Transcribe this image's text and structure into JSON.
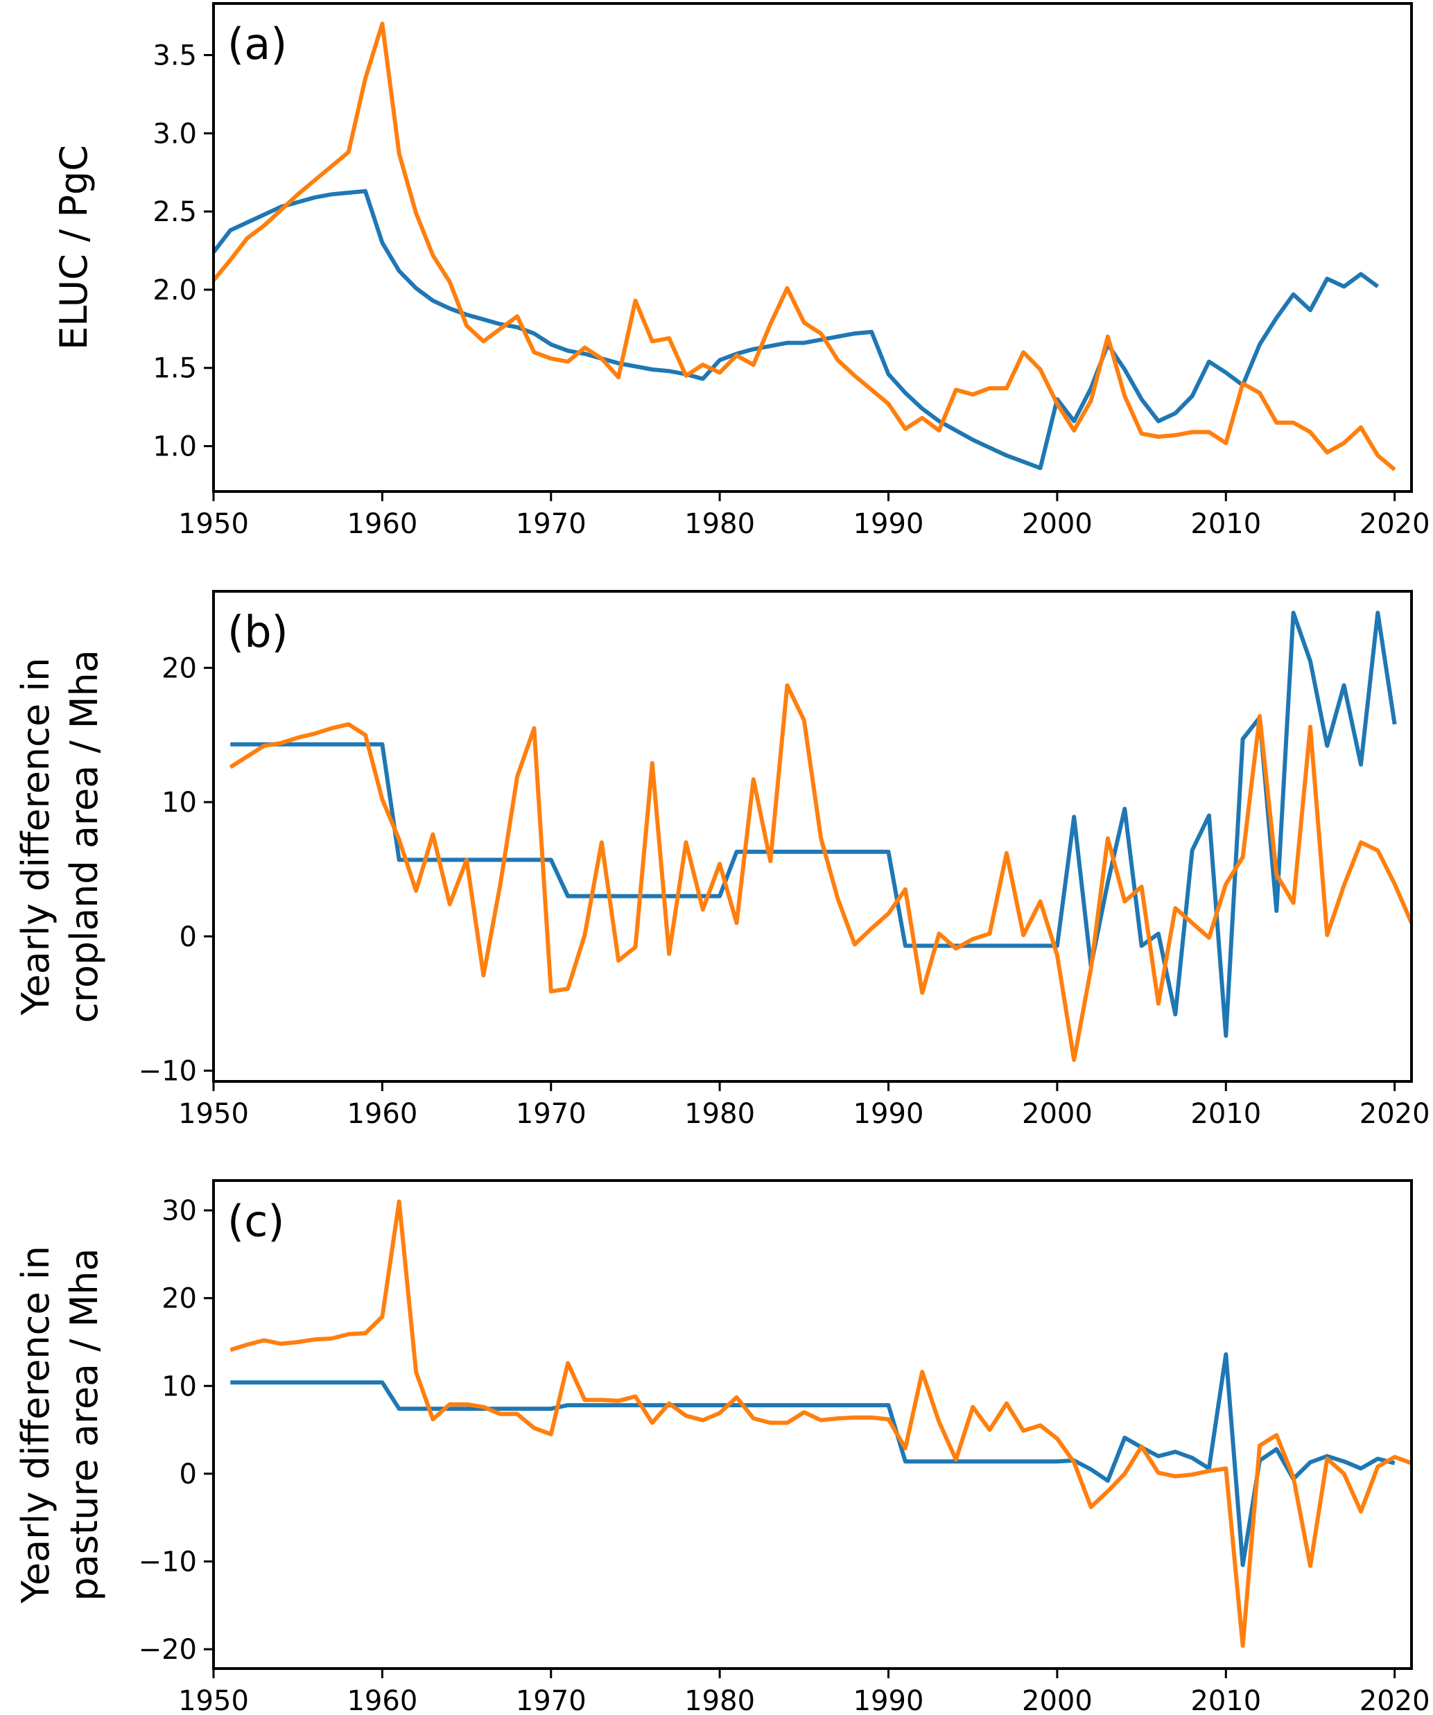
{
  "chart_data": [
    {
      "type": "line",
      "panel_label": "(a)",
      "title": "",
      "xlabel": "",
      "ylabel": "ELUC / PgC",
      "xlim": [
        1950,
        2021
      ],
      "ylim": [
        0.71,
        3.83
      ],
      "xticks": [
        1950,
        1960,
        1970,
        1980,
        1990,
        2000,
        2010,
        2020
      ],
      "xtick_labels": [
        "1950",
        "1960",
        "1970",
        "1980",
        "1990",
        "2000",
        "2010",
        "2020"
      ],
      "yticks": [
        1.0,
        1.5,
        2.0,
        2.5,
        3.0,
        3.5
      ],
      "ytick_labels": [
        "1.0",
        "1.5",
        "2.0",
        "2.5",
        "3.0",
        "3.5"
      ],
      "grid": false,
      "legend": null,
      "series": [
        {
          "name": "blue",
          "color": "#1f77b4",
          "x_start": 1950,
          "values": [
            2.24,
            2.38,
            2.43,
            2.48,
            2.53,
            2.56,
            2.59,
            2.61,
            2.62,
            2.63,
            2.3,
            2.12,
            2.01,
            1.93,
            1.88,
            1.84,
            1.81,
            1.78,
            1.76,
            1.72,
            1.65,
            1.61,
            1.59,
            1.56,
            1.53,
            1.51,
            1.49,
            1.48,
            1.46,
            1.43,
            1.55,
            1.59,
            1.62,
            1.64,
            1.66,
            1.66,
            1.68,
            1.7,
            1.72,
            1.73,
            1.46,
            1.34,
            1.24,
            1.16,
            1.1,
            1.04,
            0.99,
            0.94,
            0.9,
            0.86,
            1.3,
            1.16,
            1.37,
            1.65,
            1.49,
            1.3,
            1.16,
            1.21,
            1.32,
            1.54,
            1.47,
            1.39,
            1.65,
            1.82,
            1.97,
            1.87,
            2.07,
            2.02,
            2.1,
            2.02
          ]
        },
        {
          "name": "orange",
          "color": "#ff7f0e",
          "x_start": 1950,
          "values": [
            2.06,
            2.19,
            2.33,
            2.41,
            2.51,
            2.61,
            2.7,
            2.79,
            2.88,
            3.35,
            3.7,
            2.87,
            2.49,
            2.22,
            2.05,
            1.77,
            1.67,
            1.75,
            1.83,
            1.6,
            1.56,
            1.54,
            1.63,
            1.56,
            1.44,
            1.93,
            1.67,
            1.69,
            1.45,
            1.52,
            1.47,
            1.58,
            1.52,
            1.78,
            2.01,
            1.79,
            1.72,
            1.55,
            1.45,
            1.36,
            1.27,
            1.11,
            1.18,
            1.1,
            1.36,
            1.33,
            1.37,
            1.37,
            1.6,
            1.49,
            1.27,
            1.1,
            1.29,
            1.7,
            1.32,
            1.08,
            1.06,
            1.07,
            1.09,
            1.09,
            1.02,
            1.4,
            1.34,
            1.15,
            1.15,
            1.09,
            0.96,
            1.02,
            1.12,
            0.94,
            0.85
          ]
        }
      ]
    },
    {
      "type": "line",
      "panel_label": "(b)",
      "title": "",
      "xlabel": "",
      "ylabel": "Yearly difference in\ncropland area / Mha",
      "ylabel_lines": [
        "Yearly difference in",
        "cropland area / Mha"
      ],
      "xlim": [
        1950,
        2021
      ],
      "ylim": [
        -10.8,
        25.7
      ],
      "xticks": [
        1950,
        1960,
        1970,
        1980,
        1990,
        2000,
        2010,
        2020
      ],
      "xtick_labels": [
        "1950",
        "1960",
        "1970",
        "1980",
        "1990",
        "2000",
        "2010",
        "2020"
      ],
      "yticks": [
        -10,
        0,
        10,
        20
      ],
      "ytick_labels": [
        "−10",
        "0",
        "10",
        "20"
      ],
      "grid": false,
      "legend": null,
      "series": [
        {
          "name": "blue",
          "color": "#1f77b4",
          "x_start": 1951,
          "values": [
            14.3,
            14.3,
            14.3,
            14.3,
            14.3,
            14.3,
            14.3,
            14.3,
            14.3,
            14.3,
            5.7,
            5.7,
            5.7,
            5.7,
            5.7,
            5.7,
            5.7,
            5.7,
            5.7,
            5.7,
            3.0,
            3.0,
            3.0,
            3.0,
            3.0,
            3.0,
            3.0,
            3.0,
            3.0,
            3.0,
            6.3,
            6.3,
            6.3,
            6.3,
            6.3,
            6.3,
            6.3,
            6.3,
            6.3,
            6.3,
            -0.7,
            -0.7,
            -0.7,
            -0.7,
            -0.7,
            -0.7,
            -0.7,
            -0.7,
            -0.7,
            -0.7,
            8.9,
            -2.2,
            4.0,
            9.5,
            -0.7,
            0.2,
            -5.8,
            6.4,
            9.0,
            -7.4,
            14.7,
            16.3,
            1.9,
            24.1,
            20.5,
            14.2,
            18.7,
            12.8,
            24.1,
            15.8
          ]
        },
        {
          "name": "orange",
          "color": "#ff7f0e",
          "x_start": 1951,
          "values": [
            12.6,
            13.4,
            14.2,
            14.4,
            14.8,
            15.1,
            15.5,
            15.8,
            15.0,
            10.2,
            7.2,
            3.4,
            7.6,
            2.4,
            5.7,
            -2.9,
            3.9,
            11.9,
            15.5,
            -4.1,
            -3.9,
            0.1,
            7.0,
            -1.8,
            -0.8,
            12.9,
            -1.3,
            7.0,
            2.0,
            5.4,
            1.0,
            11.7,
            5.6,
            18.7,
            16.1,
            7.3,
            2.8,
            -0.6,
            0.6,
            1.7,
            3.5,
            -4.2,
            0.2,
            -0.9,
            -0.2,
            0.2,
            6.2,
            0.1,
            2.6,
            -1.4,
            -9.2,
            -2.4,
            7.3,
            2.6,
            3.7,
            -5.0,
            2.1,
            1.0,
            -0.1,
            3.9,
            5.9,
            16.4,
            4.6,
            2.5,
            15.6,
            0.1,
            3.8,
            7.0,
            6.4,
            3.9,
            1.0
          ]
        }
      ]
    },
    {
      "type": "line",
      "panel_label": "(c)",
      "title": "",
      "xlabel": "",
      "ylabel": "Yearly difference in\npasture area / Mha",
      "ylabel_lines": [
        "Yearly difference in",
        "pasture area / Mha"
      ],
      "xlim": [
        1950,
        2021
      ],
      "ylim": [
        -22.2,
        33.4
      ],
      "xticks": [
        1950,
        1960,
        1970,
        1980,
        1990,
        2000,
        2010,
        2020
      ],
      "xtick_labels": [
        "1950",
        "1960",
        "1970",
        "1980",
        "1990",
        "2000",
        "2010",
        "2020"
      ],
      "yticks": [
        -20,
        -10,
        0,
        10,
        20,
        30
      ],
      "ytick_labels": [
        "−20",
        "−10",
        "0",
        "10",
        "20",
        "30"
      ],
      "grid": false,
      "legend": null,
      "series": [
        {
          "name": "blue",
          "color": "#1f77b4",
          "x_start": 1951,
          "values": [
            10.4,
            10.4,
            10.4,
            10.4,
            10.4,
            10.4,
            10.4,
            10.4,
            10.4,
            10.4,
            7.4,
            7.4,
            7.4,
            7.4,
            7.4,
            7.4,
            7.4,
            7.4,
            7.4,
            7.4,
            7.8,
            7.8,
            7.8,
            7.8,
            7.8,
            7.8,
            7.8,
            7.8,
            7.8,
            7.8,
            7.8,
            7.8,
            7.8,
            7.8,
            7.8,
            7.8,
            7.8,
            7.8,
            7.8,
            7.8,
            1.4,
            1.4,
            1.4,
            1.4,
            1.4,
            1.4,
            1.4,
            1.4,
            1.4,
            1.4,
            1.5,
            0.5,
            -0.8,
            4.1,
            3.0,
            2.0,
            2.5,
            1.8,
            0.6,
            13.6,
            -10.4,
            1.5,
            2.8,
            -0.6,
            1.3,
            2.0,
            1.4,
            0.6,
            1.7,
            1.2
          ]
        },
        {
          "name": "orange",
          "color": "#ff7f0e",
          "x_start": 1951,
          "values": [
            14.1,
            14.7,
            15.2,
            14.8,
            15.0,
            15.3,
            15.4,
            15.9,
            16.0,
            17.9,
            31.0,
            11.6,
            6.2,
            7.9,
            7.9,
            7.6,
            6.8,
            6.8,
            5.2,
            4.5,
            12.6,
            8.4,
            8.4,
            8.3,
            8.8,
            5.8,
            8.0,
            6.6,
            6.1,
            6.9,
            8.7,
            6.3,
            5.8,
            5.8,
            7.0,
            6.1,
            6.3,
            6.4,
            6.4,
            6.2,
            2.9,
            11.6,
            5.9,
            1.6,
            7.6,
            5.0,
            8.0,
            4.9,
            5.5,
            4.0,
            1.3,
            -3.8,
            -2.0,
            0.0,
            3.1,
            0.1,
            -0.3,
            -0.1,
            0.3,
            0.6,
            -19.6,
            3.2,
            4.4,
            -0.4,
            -10.5,
            1.7,
            0.0,
            -4.3,
            0.8,
            1.9,
            1.2
          ]
        }
      ]
    }
  ]
}
